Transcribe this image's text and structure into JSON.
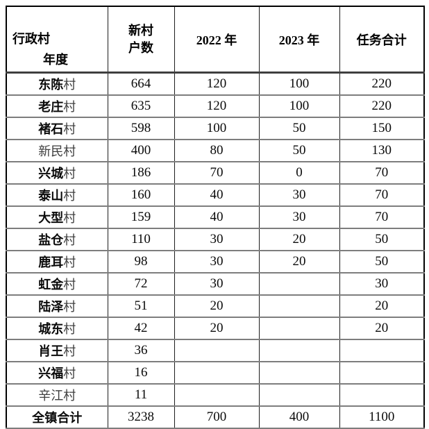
{
  "colors": {
    "background": "#ffffff",
    "outer_border": "#000000",
    "vertical_rule": "#1c1c1c",
    "horizontal_rule": "#7d7d7d",
    "text": "#000000"
  },
  "header": {
    "corner": {
      "top": "行政村",
      "bottom": "年度"
    },
    "col_households": {
      "line1": "新村",
      "line2": "户数"
    },
    "col_2022": "2022 年",
    "col_2023": "2023 年",
    "col_total": "任务合计"
  },
  "rows": [
    {
      "name_bold": "东陈",
      "name_light": "村",
      "households": "664",
      "y2022": "120",
      "y2023": "100",
      "total": "220"
    },
    {
      "name_bold": "老庄",
      "name_light": "村",
      "households": "635",
      "y2022": "120",
      "y2023": "100",
      "total": "220"
    },
    {
      "name_bold": "褚石",
      "name_light": "村",
      "households": "598",
      "y2022": "100",
      "y2023": "50",
      "total": "150"
    },
    {
      "name_bold": "",
      "name_light": "新民村",
      "households": "400",
      "y2022": "80",
      "y2023": "50",
      "total": "130"
    },
    {
      "name_bold": "兴城",
      "name_light": "村",
      "households": "186",
      "y2022": "70",
      "y2023": "0",
      "total": "70"
    },
    {
      "name_bold": "泰山",
      "name_light": "村",
      "households": "160",
      "y2022": "40",
      "y2023": "30",
      "total": "70"
    },
    {
      "name_bold": "大型",
      "name_light": "村",
      "households": "159",
      "y2022": "40",
      "y2023": "30",
      "total": "70"
    },
    {
      "name_bold": "盐仓",
      "name_light": "村",
      "households": "110",
      "y2022": "30",
      "y2023": "20",
      "total": "50"
    },
    {
      "name_bold": "鹿耳",
      "name_light": "村",
      "households": "98",
      "y2022": "30",
      "y2023": "20",
      "total": "50"
    },
    {
      "name_bold": "虹金",
      "name_light": "村",
      "households": "72",
      "y2022": "30",
      "y2023": "",
      "total": "30"
    },
    {
      "name_bold": "陆泽",
      "name_light": "村",
      "households": "51",
      "y2022": "20",
      "y2023": "",
      "total": "20"
    },
    {
      "name_bold": "城东",
      "name_light": "村",
      "households": "42",
      "y2022": "20",
      "y2023": "",
      "total": "20"
    },
    {
      "name_bold": "肖王",
      "name_light": "村",
      "households": "36",
      "y2022": "",
      "y2023": "",
      "total": ""
    },
    {
      "name_bold": "兴福",
      "name_light": "村",
      "households": "16",
      "y2022": "",
      "y2023": "",
      "total": ""
    },
    {
      "name_bold": "",
      "name_light": "辛江村",
      "households": "11",
      "y2022": "",
      "y2023": "",
      "total": ""
    }
  ],
  "total_row": {
    "name_bold": "全镇合计",
    "name_light": "",
    "households": "3238",
    "y2022": "700",
    "y2023": "400",
    "total": "1100"
  }
}
